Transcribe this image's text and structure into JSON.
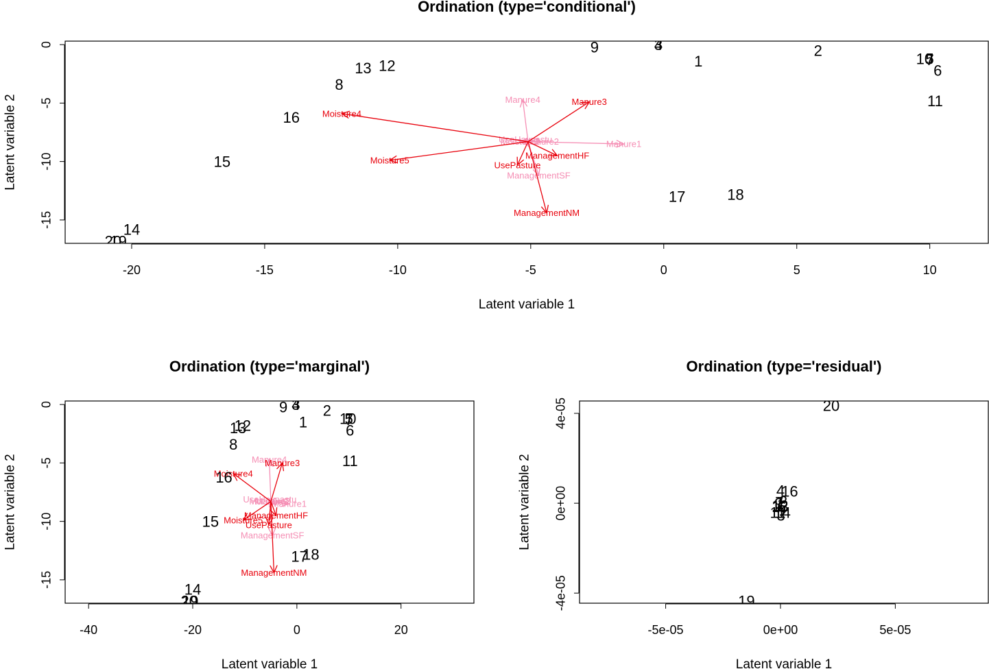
{
  "chart_data": [
    {
      "type": "scatter",
      "title": "Ordination (type='conditional')",
      "xlabel": "Latent variable 1",
      "ylabel": "Latent variable 2",
      "xlim": [
        -22.5,
        12.2
      ],
      "ylim": [
        -17.0,
        0.3
      ],
      "xticks": [
        -20,
        -15,
        -10,
        -5,
        0,
        5,
        10
      ],
      "xtick_labels": [
        "-20",
        "-15",
        "-10",
        "-5",
        "0",
        "5",
        "10"
      ],
      "yticks": [
        0,
        -5,
        -10,
        -15
      ],
      "ytick_labels": [
        "0",
        "-5",
        "-10",
        "-15"
      ],
      "arrow_origin": [
        -5.1,
        -8.3
      ],
      "points": [
        {
          "label": "1",
          "x": 1.3,
          "y": -1.4
        },
        {
          "label": "2",
          "x": 5.8,
          "y": -0.5
        },
        {
          "label": "3",
          "x": -0.2,
          "y": 0.0
        },
        {
          "label": "4",
          "x": -0.2,
          "y": 0.0
        },
        {
          "label": "5",
          "x": 10.0,
          "y": -1.2
        },
        {
          "label": "6",
          "x": 10.3,
          "y": -2.2
        },
        {
          "label": "7",
          "x": 10.0,
          "y": -1.3
        },
        {
          "label": "8",
          "x": -12.2,
          "y": -3.4
        },
        {
          "label": "9",
          "x": -2.6,
          "y": -0.2
        },
        {
          "label": "10",
          "x": 9.8,
          "y": -1.2
        },
        {
          "label": "11",
          "x": 10.2,
          "y": -4.8
        },
        {
          "label": "12",
          "x": -10.4,
          "y": -1.8
        },
        {
          "label": "13",
          "x": -11.3,
          "y": -2.0
        },
        {
          "label": "14",
          "x": -20.0,
          "y": -15.8
        },
        {
          "label": "15",
          "x": -16.6,
          "y": -10.0
        },
        {
          "label": "16",
          "x": -14.0,
          "y": -6.2
        },
        {
          "label": "17",
          "x": 0.5,
          "y": -13.0
        },
        {
          "label": "18",
          "x": 2.7,
          "y": -12.8
        },
        {
          "label": "19",
          "x": -20.5,
          "y": -16.8
        },
        {
          "label": "20",
          "x": -20.7,
          "y": -16.8
        }
      ],
      "arrows": [
        {
          "label": "Moisture4",
          "x": -12.1,
          "y": -5.9,
          "color": "#e8000b"
        },
        {
          "label": "Moisture5",
          "x": -10.3,
          "y": -9.9,
          "color": "#e8000b"
        },
        {
          "label": "Manure3",
          "x": -2.8,
          "y": -4.9,
          "color": "#e8000b"
        },
        {
          "label": "ManagementHF",
          "x": -4.0,
          "y": -9.5,
          "color": "#e8000b"
        },
        {
          "label": "UsePasture",
          "x": -5.5,
          "y": -10.3,
          "color": "#e8000b"
        },
        {
          "label": "ManagementNM",
          "x": -4.4,
          "y": -14.4,
          "color": "#e8000b"
        },
        {
          "label": "Manure4",
          "x": -5.3,
          "y": -4.7,
          "color": "#f58eb4"
        },
        {
          "label": "Manure1",
          "x": -1.5,
          "y": -8.5,
          "color": "#f58eb4"
        },
        {
          "label": "Manure2",
          "x": -4.6,
          "y": -8.3,
          "color": "#f58eb4"
        },
        {
          "label": "ManagementSF",
          "x": -4.7,
          "y": -11.2,
          "color": "#f58eb4"
        },
        {
          "label": "UseHaypastu",
          "x": -5.2,
          "y": -8.1,
          "color": "#f58eb4"
        },
        {
          "label": "Moisture2",
          "x": -5.4,
          "y": -8.3,
          "color": "#f58eb4"
        }
      ]
    },
    {
      "type": "scatter",
      "title": "Ordination (type='marginal')",
      "xlabel": "Latent variable 1",
      "ylabel": "Latent variable 2",
      "xlim": [
        -44.5,
        34.0
      ],
      "ylim": [
        -17.0,
        0.3
      ],
      "xticks": [
        -40,
        -20,
        0,
        20
      ],
      "xtick_labels": [
        "-40",
        "-20",
        "0",
        "20"
      ],
      "yticks": [
        0,
        -5,
        -10,
        -15
      ],
      "ytick_labels": [
        "0",
        "-5",
        "-10",
        "-15"
      ],
      "arrow_origin": [
        -5.0,
        -8.3
      ],
      "points": [
        {
          "label": "1",
          "x": 1.2,
          "y": -1.5
        },
        {
          "label": "2",
          "x": 5.8,
          "y": -0.5
        },
        {
          "label": "3",
          "x": -0.2,
          "y": 0.0
        },
        {
          "label": "4",
          "x": -0.2,
          "y": 0.0
        },
        {
          "label": "5",
          "x": 10.0,
          "y": -1.2
        },
        {
          "label": "6",
          "x": 10.2,
          "y": -2.2
        },
        {
          "label": "7",
          "x": 10.0,
          "y": -1.3
        },
        {
          "label": "8",
          "x": -12.2,
          "y": -3.4
        },
        {
          "label": "9",
          "x": -2.6,
          "y": -0.2
        },
        {
          "label": "10",
          "x": 9.8,
          "y": -1.2
        },
        {
          "label": "11",
          "x": 10.2,
          "y": -4.8
        },
        {
          "label": "12",
          "x": -10.4,
          "y": -1.8
        },
        {
          "label": "13",
          "x": -11.3,
          "y": -2.0
        },
        {
          "label": "14",
          "x": -20.0,
          "y": -15.8
        },
        {
          "label": "15",
          "x": -16.6,
          "y": -10.0
        },
        {
          "label": "16",
          "x": -14.0,
          "y": -6.2
        },
        {
          "label": "17",
          "x": 0.5,
          "y": -13.0
        },
        {
          "label": "18",
          "x": 2.7,
          "y": -12.8
        },
        {
          "label": "19",
          "x": -20.5,
          "y": -16.8
        },
        {
          "label": "20",
          "x": -20.7,
          "y": -16.8
        }
      ],
      "arrows": [
        {
          "label": "Moisture4",
          "x": -12.2,
          "y": -5.9,
          "color": "#e8000b"
        },
        {
          "label": "Moisture5",
          "x": -10.3,
          "y": -9.9,
          "color": "#e8000b"
        },
        {
          "label": "Manure3",
          "x": -2.8,
          "y": -5.0,
          "color": "#e8000b"
        },
        {
          "label": "ManagementHF",
          "x": -4.0,
          "y": -9.5,
          "color": "#e8000b"
        },
        {
          "label": "UsePasture",
          "x": -5.4,
          "y": -10.3,
          "color": "#e8000b"
        },
        {
          "label": "ManagementNM",
          "x": -4.4,
          "y": -14.4,
          "color": "#e8000b"
        },
        {
          "label": "Manure4",
          "x": -5.3,
          "y": -4.7,
          "color": "#f58eb4"
        },
        {
          "label": "Manure1",
          "x": -1.5,
          "y": -8.5,
          "color": "#f58eb4"
        },
        {
          "label": "Manure2",
          "x": -4.6,
          "y": -8.3,
          "color": "#f58eb4"
        },
        {
          "label": "ManagementSF",
          "x": -4.7,
          "y": -11.2,
          "color": "#f58eb4"
        },
        {
          "label": "UseHaypastu",
          "x": -5.2,
          "y": -8.1,
          "color": "#f58eb4"
        },
        {
          "label": "Moisture2",
          "x": -5.4,
          "y": -8.3,
          "color": "#f58eb4"
        }
      ]
    },
    {
      "type": "scatter",
      "title": "Ordination (type='residual')",
      "xlabel": "Latent variable 1",
      "ylabel": "Latent variable 2",
      "xlim": [
        -8.75e-05,
        9.05e-05
      ],
      "ylim": [
        -4.45e-05,
        4.55e-05
      ],
      "xticks": [
        -5e-05,
        0,
        5e-05
      ],
      "xtick_labels": [
        "-5e-05",
        "0e+00",
        "5e-05"
      ],
      "yticks": [
        4e-05,
        0,
        -4e-05
      ],
      "ytick_labels": [
        "4e-05",
        "0e+00",
        "-4e-05"
      ],
      "points": [
        {
          "label": "20",
          "x": 2.21e-05,
          "y": 4.35e-05
        },
        {
          "label": "19",
          "x": -1.48e-05,
          "y": -4.35e-05
        },
        {
          "label": "16",
          "x": 4e-06,
          "y": 5.3e-06
        },
        {
          "label": "4",
          "x": 0.0,
          "y": 5.7e-06
        },
        {
          "label": "2",
          "x": 1.2e-06,
          "y": 1e-06
        },
        {
          "label": "7",
          "x": -5e-07,
          "y": 5e-07
        },
        {
          "label": "9",
          "x": -8e-07,
          "y": 0.0
        },
        {
          "label": "1",
          "x": 3e-07,
          "y": -5e-07
        },
        {
          "label": "6",
          "x": 6e-07,
          "y": -1.5e-06
        },
        {
          "label": "12",
          "x": -2e-07,
          "y": -1e-06
        },
        {
          "label": "13",
          "x": -2e-07,
          "y": -1.5e-06
        },
        {
          "label": "11",
          "x": -1.2e-06,
          "y": -4.1e-06
        },
        {
          "label": "14",
          "x": 8e-07,
          "y": -4.1e-06
        },
        {
          "label": "3",
          "x": 2e-07,
          "y": -5.3e-06
        }
      ],
      "arrows": []
    }
  ]
}
